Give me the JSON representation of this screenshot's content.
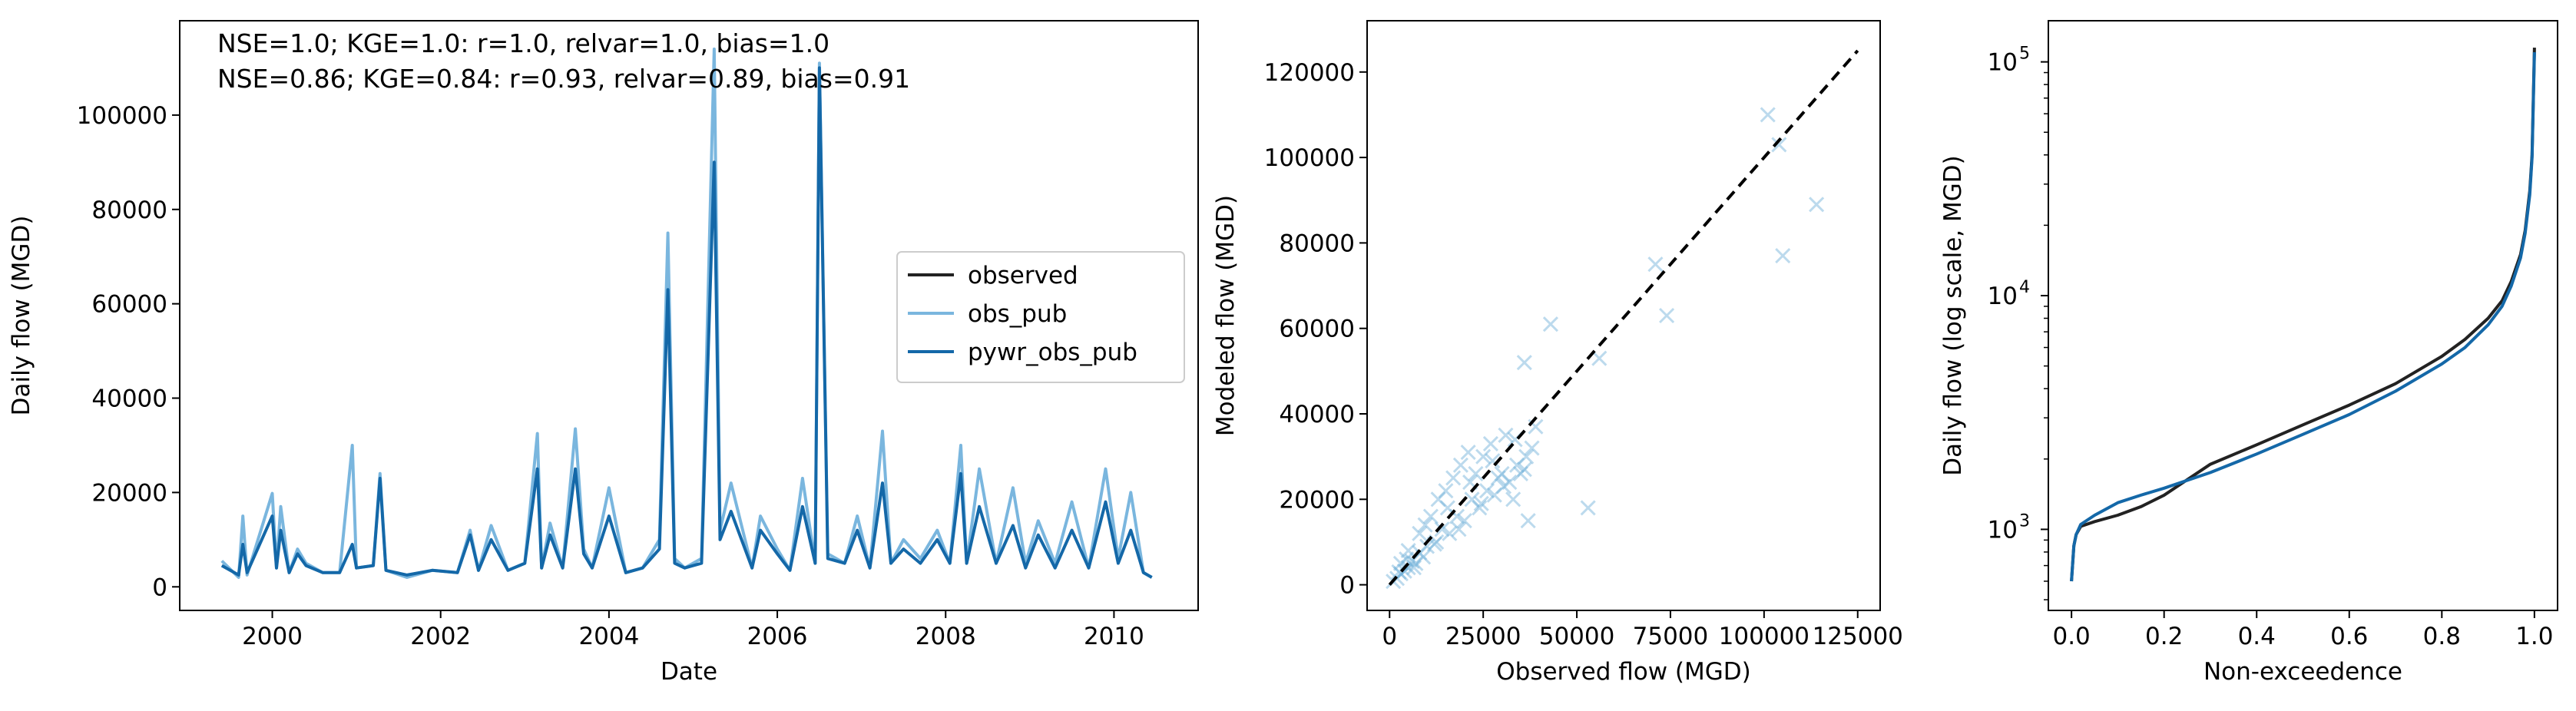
{
  "chart_data": [
    {
      "type": "line",
      "xlabel": "Date",
      "ylabel": "Daily flow (MGD)",
      "xlim": [
        1998.9,
        2011.0
      ],
      "ylim": [
        -5000,
        120000
      ],
      "x_ticks": [
        {
          "value": 2000,
          "label": "2000"
        },
        {
          "value": 2002,
          "label": "2002"
        },
        {
          "value": 2004,
          "label": "2004"
        },
        {
          "value": 2006,
          "label": "2006"
        },
        {
          "value": 2008,
          "label": "2008"
        },
        {
          "value": 2010,
          "label": "2010"
        }
      ],
      "y_ticks": [
        {
          "value": 0,
          "label": "0"
        },
        {
          "value": 20000,
          "label": "20000"
        },
        {
          "value": 40000,
          "label": "40000"
        },
        {
          "value": 60000,
          "label": "60000"
        },
        {
          "value": 80000,
          "label": "80000"
        },
        {
          "value": 100000,
          "label": "100000"
        }
      ],
      "annotations": [
        {
          "text": "NSE=1.0; KGE=1.0: r=1.0, relvar=1.0, bias=1.0",
          "color": "#7ab6de"
        },
        {
          "text": "NSE=0.86; KGE=0.84: r=0.93, relvar=0.89, bias=0.91",
          "color": "#1f6ba8"
        }
      ],
      "legend": {
        "placement": "center-right",
        "entries": [
          {
            "label": "observed",
            "color": "#222222"
          },
          {
            "label": "obs_pub",
            "color": "#7ab6de"
          },
          {
            "label": "pywr_obs_pub",
            "color": "#1468a8"
          }
        ]
      },
      "series": [
        {
          "name": "obs_pub",
          "color": "#7ab6de",
          "x": [
            1999.4,
            1999.6,
            1999.65,
            1999.7,
            2000.0,
            2000.05,
            2000.1,
            2000.2,
            2000.3,
            2000.4,
            2000.6,
            2000.8,
            2000.95,
            2001.0,
            2001.2,
            2001.28,
            2001.35,
            2001.6,
            2001.9,
            2002.2,
            2002.35,
            2002.45,
            2002.6,
            2002.8,
            2003.0,
            2003.15,
            2003.2,
            2003.3,
            2003.45,
            2003.6,
            2003.7,
            2003.8,
            2004.0,
            2004.2,
            2004.4,
            2004.6,
            2004.7,
            2004.78,
            2004.9,
            2005.1,
            2005.25,
            2005.32,
            2005.45,
            2005.7,
            2005.8,
            2006.0,
            2006.15,
            2006.3,
            2006.45,
            2006.5,
            2006.6,
            2006.8,
            2006.95,
            2007.1,
            2007.25,
            2007.35,
            2007.5,
            2007.7,
            2007.9,
            2008.05,
            2008.18,
            2008.25,
            2008.4,
            2008.6,
            2008.8,
            2008.95,
            2009.1,
            2009.3,
            2009.5,
            2009.7,
            2009.9,
            2010.05,
            2010.2,
            2010.35,
            2010.45
          ],
          "y": [
            5500,
            2000,
            15000,
            2500,
            19800,
            4000,
            17000,
            3000,
            8000,
            5000,
            3000,
            3000,
            30000,
            4000,
            4500,
            24000,
            3500,
            2000,
            3500,
            3000,
            12000,
            3500,
            13000,
            3500,
            5000,
            32500,
            4000,
            13500,
            4000,
            33500,
            8000,
            4000,
            21000,
            3000,
            4000,
            10000,
            75000,
            6000,
            4000,
            6000,
            114000,
            12000,
            22000,
            4000,
            15000,
            8000,
            3500,
            23000,
            5000,
            111000,
            7000,
            5000,
            15000,
            4000,
            33000,
            5000,
            10000,
            6000,
            12000,
            5000,
            30000,
            5000,
            25000,
            5000,
            21000,
            5000,
            14000,
            5000,
            18000,
            4000,
            25000,
            6000,
            20000,
            3000,
            2000
          ]
        },
        {
          "name": "pywr_obs_pub",
          "color": "#1468a8",
          "x": [
            1999.4,
            1999.6,
            1999.65,
            1999.7,
            2000.0,
            2000.05,
            2000.1,
            2000.2,
            2000.3,
            2000.4,
            2000.6,
            2000.8,
            2000.95,
            2001.0,
            2001.2,
            2001.28,
            2001.35,
            2001.6,
            2001.9,
            2002.2,
            2002.35,
            2002.45,
            2002.6,
            2002.8,
            2003.0,
            2003.15,
            2003.2,
            2003.3,
            2003.45,
            2003.6,
            2003.7,
            2003.8,
            2004.0,
            2004.2,
            2004.4,
            2004.6,
            2004.7,
            2004.78,
            2004.9,
            2005.1,
            2005.25,
            2005.32,
            2005.45,
            2005.7,
            2005.8,
            2006.0,
            2006.15,
            2006.3,
            2006.45,
            2006.5,
            2006.6,
            2006.8,
            2006.95,
            2007.1,
            2007.25,
            2007.35,
            2007.5,
            2007.7,
            2007.9,
            2008.05,
            2008.18,
            2008.25,
            2008.4,
            2008.6,
            2008.8,
            2008.95,
            2009.1,
            2009.3,
            2009.5,
            2009.7,
            2009.9,
            2010.05,
            2010.2,
            2010.35,
            2010.45
          ],
          "y": [
            4500,
            2500,
            9000,
            3000,
            15000,
            4000,
            12000,
            3000,
            7000,
            4500,
            3000,
            3000,
            9000,
            4000,
            4500,
            23000,
            3500,
            2500,
            3500,
            3000,
            11000,
            3500,
            10000,
            3500,
            5000,
            25000,
            4000,
            11000,
            4000,
            25000,
            7000,
            4000,
            15000,
            3000,
            4000,
            8000,
            63000,
            5000,
            4000,
            5000,
            90000,
            10000,
            16000,
            4000,
            12000,
            7000,
            3500,
            17000,
            5000,
            110000,
            6000,
            5000,
            12000,
            4000,
            22000,
            5000,
            8000,
            5000,
            10000,
            5000,
            24000,
            5000,
            17000,
            5000,
            13000,
            4000,
            11000,
            4000,
            12000,
            4000,
            18000,
            5000,
            12000,
            3000,
            2000
          ]
        }
      ]
    },
    {
      "type": "scatter",
      "xlabel": "Observed flow (MGD)",
      "ylabel": "Modeled flow (MGD)",
      "xlim": [
        -6000,
        131000
      ],
      "ylim": [
        -6000,
        132000
      ],
      "x_ticks": [
        {
          "value": 0,
          "label": "0"
        },
        {
          "value": 25000,
          "label": "25000"
        },
        {
          "value": 50000,
          "label": "50000"
        },
        {
          "value": 75000,
          "label": "75000"
        },
        {
          "value": 100000,
          "label": "100000"
        },
        {
          "value": 125000,
          "label": "125000"
        }
      ],
      "y_ticks": [
        {
          "value": 0,
          "label": "0"
        },
        {
          "value": 20000,
          "label": "20000"
        },
        {
          "value": 40000,
          "label": "40000"
        },
        {
          "value": 60000,
          "label": "60000"
        },
        {
          "value": 80000,
          "label": "80000"
        },
        {
          "value": 100000,
          "label": "100000"
        },
        {
          "value": 120000,
          "label": "120000"
        }
      ],
      "one_to_one_line": [
        0,
        125000
      ],
      "series": [
        {
          "color": "#6aaed6",
          "x": [
            1000,
            2000,
            3000,
            4000,
            5000,
            6000,
            7000,
            8000,
            9000,
            10000,
            12000,
            14000,
            16000,
            18000,
            20000,
            22000,
            24000,
            26000,
            28000,
            30000,
            32000,
            34000,
            36000,
            38000,
            3000,
            5000,
            8000,
            11000,
            13000,
            15000,
            17000,
            19000,
            21000,
            23000,
            25000,
            27000,
            29000,
            31000,
            33000,
            35000,
            37000,
            2500,
            4500,
            6500,
            9500,
            12500,
            15500,
            18500,
            21500,
            24500,
            27500,
            30500,
            33500,
            36500,
            39000,
            43000,
            36000,
            53000,
            56000,
            71000,
            74000,
            101000,
            104000,
            105000,
            114000
          ],
          "y": [
            800,
            1500,
            2600,
            3200,
            4000,
            5500,
            5000,
            7500,
            6500,
            9000,
            9500,
            13000,
            12000,
            16000,
            15000,
            20000,
            18000,
            22000,
            21000,
            26000,
            24000,
            28000,
            27000,
            32000,
            5000,
            8000,
            12000,
            16000,
            20000,
            22000,
            25000,
            28000,
            31000,
            26000,
            30000,
            33000,
            25000,
            35000,
            20000,
            26000,
            15000,
            3000,
            6000,
            4000,
            14000,
            10000,
            18000,
            13000,
            24000,
            19000,
            29000,
            23000,
            34000,
            30000,
            37000,
            61000,
            52000,
            18000,
            53000,
            75000,
            63000,
            110000,
            103000,
            77000,
            89000
          ]
        }
      ]
    },
    {
      "type": "line",
      "xlabel": "Non-exceedence",
      "ylabel": "Daily flow (log scale, MGD)",
      "yscale": "log",
      "xlim": [
        -0.05,
        1.05
      ],
      "ylim": [
        450,
        150000
      ],
      "x_ticks": [
        {
          "value": 0.0,
          "label": "0.0"
        },
        {
          "value": 0.2,
          "label": "0.2"
        },
        {
          "value": 0.4,
          "label": "0.4"
        },
        {
          "value": 0.6,
          "label": "0.6"
        },
        {
          "value": 0.8,
          "label": "0.8"
        },
        {
          "value": 1.0,
          "label": "1.0"
        }
      ],
      "y_ticks": [
        {
          "value": 1000,
          "base": "10",
          "exp": "3"
        },
        {
          "value": 10000,
          "base": "10",
          "exp": "4"
        },
        {
          "value": 100000,
          "base": "10",
          "exp": "5"
        }
      ],
      "series": [
        {
          "color": "#222222",
          "x": [
            0.0,
            0.005,
            0.01,
            0.02,
            0.05,
            0.1,
            0.15,
            0.2,
            0.3,
            0.4,
            0.5,
            0.6,
            0.7,
            0.8,
            0.85,
            0.9,
            0.93,
            0.95,
            0.97,
            0.98,
            0.99,
            0.995,
            1.0
          ],
          "y": [
            600,
            850,
            950,
            1030,
            1080,
            1150,
            1250,
            1400,
            1900,
            2300,
            2800,
            3400,
            4200,
            5500,
            6500,
            8000,
            9500,
            11500,
            15000,
            19000,
            28000,
            40000,
            115000
          ]
        },
        {
          "color": "#1468a8",
          "x": [
            0.0,
            0.005,
            0.01,
            0.02,
            0.05,
            0.1,
            0.15,
            0.2,
            0.3,
            0.4,
            0.5,
            0.6,
            0.7,
            0.8,
            0.85,
            0.9,
            0.93,
            0.95,
            0.97,
            0.98,
            0.99,
            0.995,
            1.0
          ],
          "y": [
            600,
            850,
            950,
            1050,
            1150,
            1300,
            1400,
            1500,
            1750,
            2100,
            2550,
            3100,
            3900,
            5100,
            6000,
            7500,
            9000,
            11000,
            14500,
            18500,
            27000,
            39000,
            110000
          ]
        }
      ]
    }
  ]
}
